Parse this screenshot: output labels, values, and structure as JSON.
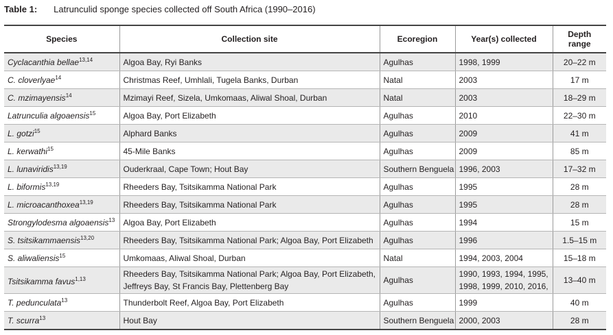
{
  "caption": {
    "number": "Table 1:",
    "title": "Latrunculid sponge species collected off South Africa (1990–2016)"
  },
  "headers": [
    "Species",
    "Collection site",
    "Ecoregion",
    "Year(s) collected",
    "Depth range"
  ],
  "rows": [
    {
      "species": "Cyclacanthia bellae",
      "refs": "13,14",
      "site": "Algoa Bay, Ryi Banks",
      "ecoregion": "Agulhas",
      "years": "1998, 1999",
      "depth": "20–22 m"
    },
    {
      "species": "C. cloverlyae",
      "refs": "14",
      "site": "Christmas Reef, Umhlali, Tugela Banks, Durban",
      "ecoregion": "Natal",
      "years": "2003",
      "depth": "17 m"
    },
    {
      "species": "C. mzimayensis",
      "refs": "14",
      "site": "Mzimayi Reef, Sizela, Umkomaas, Aliwal Shoal, Durban",
      "ecoregion": "Natal",
      "years": "2003",
      "depth": "18–29 m"
    },
    {
      "species": "Latrunculia algoaensis",
      "refs": "15",
      "site": "Algoa Bay, Port Elizabeth",
      "ecoregion": "Agulhas",
      "years": "2010",
      "depth": "22–30 m"
    },
    {
      "species": "L. gotzi",
      "refs": "15",
      "site": "Alphard Banks",
      "ecoregion": "Agulhas",
      "years": "2009",
      "depth": "41 m"
    },
    {
      "species": "L. kerwathi",
      "refs": "15",
      "site": "45-Mile Banks",
      "ecoregion": "Agulhas",
      "years": "2009",
      "depth": "85 m"
    },
    {
      "species": "L. lunaviridis",
      "refs": "13,19",
      "site": "Ouderkraal, Cape Town; Hout Bay",
      "ecoregion": "Southern Benguela",
      "years": "1996, 2003",
      "depth": "17–32 m"
    },
    {
      "species": "L. biformis",
      "refs": "13,19",
      "site": "Rheeders Bay, Tsitsikamma National Park",
      "ecoregion": "Agulhas",
      "years": "1995",
      "depth": "28 m"
    },
    {
      "species": "L. microacanthoxea",
      "refs": "13,19",
      "site": "Rheeders Bay, Tsitsikamma National Park",
      "ecoregion": "Agulhas",
      "years": "1995",
      "depth": "28 m"
    },
    {
      "species": "Strongylodesma algoaensis",
      "refs": "13",
      "site": "Algoa Bay, Port Elizabeth",
      "ecoregion": "Agulhas",
      "years": "1994",
      "depth": "15 m"
    },
    {
      "species": "S. tsitsikammaensis",
      "refs": "13,20",
      "site": "Rheeders Bay, Tsitsikamma National Park; Algoa Bay, Port Elizabeth",
      "ecoregion": "Agulhas",
      "years": "1996",
      "depth": "1.5–15 m"
    },
    {
      "species": "S. aliwaliensis",
      "refs": "15",
      "site": "Umkomaas, Aliwal Shoal, Durban",
      "ecoregion": "Natal",
      "years": "1994, 2003, 2004",
      "depth": "15–18 m"
    },
    {
      "species": "Tsitsikamma favus",
      "refs": "1,13",
      "site": "Rheeders Bay, Tsitsikamma National Park; Algoa Bay, Port Elizabeth, Jeffreys Bay, St Francis Bay, Plettenberg Bay",
      "ecoregion": "Agulhas",
      "years": "1990, 1993, 1994, 1995, 1998, 1999, 2010, 2016,",
      "depth": "13–40 m"
    },
    {
      "species": "T. pedunculata",
      "refs": "13",
      "site": "Thunderbolt Reef, Algoa Bay, Port Elizabeth",
      "ecoregion": "Agulhas",
      "years": "1999",
      "depth": "40 m"
    },
    {
      "species": "T. scurra",
      "refs": "13",
      "site": "Hout Bay",
      "ecoregion": "Southern Benguela",
      "years": "2000, 2003",
      "depth": "28 m"
    }
  ]
}
